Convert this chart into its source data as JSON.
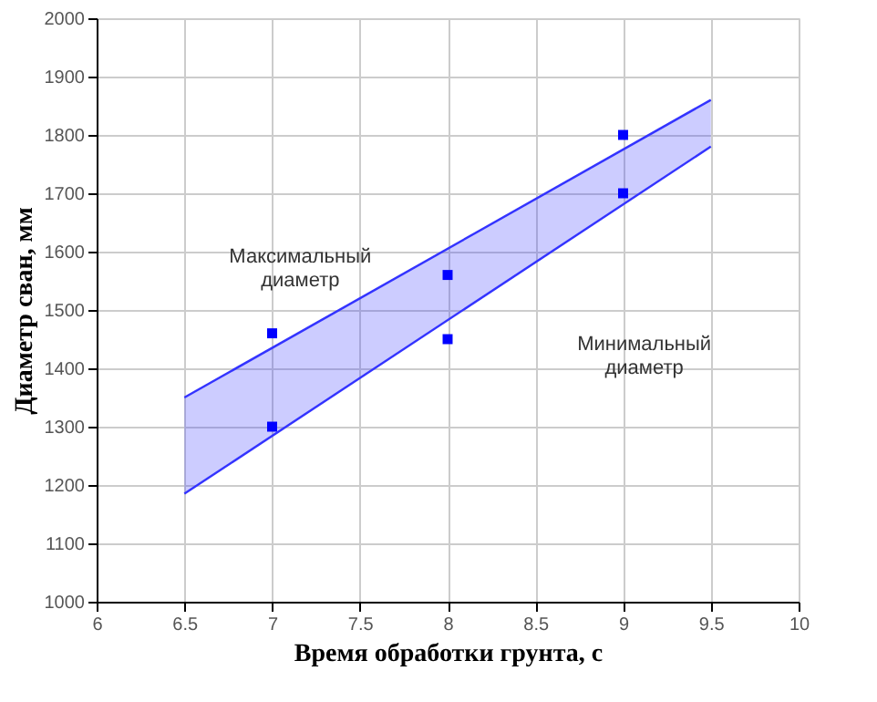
{
  "chart_data": {
    "type": "scatter",
    "xlabel": "Время обработки грунта, с",
    "ylabel": "Диаметр сван, мм",
    "xlim": [
      6,
      10
    ],
    "xticks": [
      6,
      6.5,
      7,
      7.5,
      8,
      8.5,
      9,
      9.5,
      10
    ],
    "ylim": [
      1000,
      2000
    ],
    "yticks": [
      1000,
      1100,
      1200,
      1300,
      1400,
      1500,
      1600,
      1700,
      1800,
      1900,
      2000
    ],
    "grid": true,
    "series": [
      {
        "type": "line",
        "color": "#3333ff",
        "marker": "none",
        "x": [
          6.5,
          9.5
        ],
        "values": [
          1350,
          1860
        ],
        "lower": [
          1185,
          1780
        ],
        "upper": [
          1350,
          1860
        ]
      },
      {
        "type": "line",
        "color": "#3333ff",
        "marker": "none",
        "x": [
          6.5,
          9.5
        ],
        "values": [
          1185,
          1780
        ]
      },
      {
        "color": "#0000ff",
        "marker": "square",
        "x": [
          7,
          7,
          8,
          8,
          9,
          9
        ],
        "values": [
          1460,
          1300,
          1560,
          1450,
          1800,
          1700
        ]
      }
    ],
    "annotations": [
      "Максимальный\nдиаметр",
      "Минимальный\nдиаметр"
    ]
  }
}
